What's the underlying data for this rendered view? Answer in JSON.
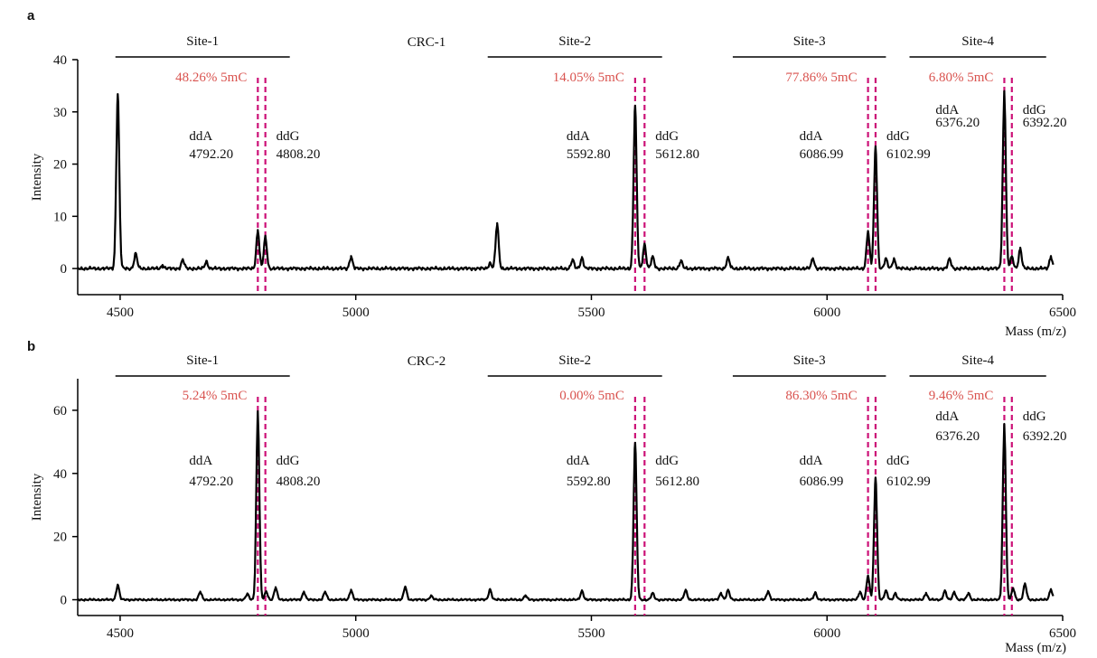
{
  "chart_data": [
    {
      "type": "line",
      "panel_label": "a",
      "sample": "CRC-1",
      "xlabel": "Mass (m/z)",
      "ylabel": "Intensity",
      "xlim": [
        4410,
        6500
      ],
      "ylim": [
        -5,
        40
      ],
      "xticks": [
        "4500",
        "5000",
        "5500",
        "6000",
        "6500"
      ],
      "yticks": [
        "0",
        "10",
        "20",
        "30",
        "40"
      ],
      "line_color": "#000000",
      "marker_color": "#cc1177",
      "sites": [
        {
          "name": "Site-1",
          "x_start": 4490,
          "x_end": 4860,
          "methylation": "48.26% 5mC",
          "ddA_label": "ddA",
          "ddA_mass": "4792.20",
          "ddG_label": "ddG",
          "ddG_mass": "4808.20",
          "marker_x": [
            4792.2,
            4808.2
          ]
        },
        {
          "name": "Site-2",
          "x_start": 5280,
          "x_end": 5650,
          "methylation": "14.05% 5mC",
          "ddA_label": "ddA",
          "ddA_mass": "5592.80",
          "ddG_label": "ddG",
          "ddG_mass": "5612.80",
          "marker_x": [
            5592.8,
            5612.8
          ]
        },
        {
          "name": "Site-3",
          "x_start": 5800,
          "x_end": 6125,
          "methylation": "77.86% 5mC",
          "ddA_label": "ddA",
          "ddA_mass": "6086.99",
          "ddG_label": "ddG",
          "ddG_mass": "6102.99",
          "marker_x": [
            6086.99,
            6102.99
          ]
        },
        {
          "name": "Site-4",
          "x_start": 6175,
          "x_end": 6465,
          "methylation": "6.80% 5mC",
          "ddA_label": "ddA",
          "ddA_mass": "6376.20",
          "ddG_label": "ddG",
          "ddG_mass": "6392.20",
          "marker_x": [
            6376.2,
            6392.2
          ]
        }
      ],
      "peaks": [
        {
          "x": 4495,
          "y": 33.2
        },
        {
          "x": 4533,
          "y": 2.8
        },
        {
          "x": 4590,
          "y": 0.5
        },
        {
          "x": 4633,
          "y": 1.6
        },
        {
          "x": 4683,
          "y": 1.3
        },
        {
          "x": 4792.2,
          "y": 7.2
        },
        {
          "x": 4808.2,
          "y": 6.0
        },
        {
          "x": 4990,
          "y": 2.2
        },
        {
          "x": 5285,
          "y": 1.0
        },
        {
          "x": 5300,
          "y": 8.5
        },
        {
          "x": 5460,
          "y": 1.6
        },
        {
          "x": 5480,
          "y": 2.0
        },
        {
          "x": 5592.8,
          "y": 31.0
        },
        {
          "x": 5612.8,
          "y": 4.6
        },
        {
          "x": 5630,
          "y": 2.2
        },
        {
          "x": 5690,
          "y": 1.4
        },
        {
          "x": 5790,
          "y": 2.0
        },
        {
          "x": 5970,
          "y": 1.8
        },
        {
          "x": 6086.99,
          "y": 7.0
        },
        {
          "x": 6102.99,
          "y": 23.2
        },
        {
          "x": 6125,
          "y": 1.8
        },
        {
          "x": 6142,
          "y": 1.8
        },
        {
          "x": 6260,
          "y": 1.8
        },
        {
          "x": 6376.2,
          "y": 33.8
        },
        {
          "x": 6392.2,
          "y": 2.2
        },
        {
          "x": 6410,
          "y": 3.8
        },
        {
          "x": 6475,
          "y": 2.2
        }
      ]
    },
    {
      "type": "line",
      "panel_label": "b",
      "sample": "CRC-2",
      "xlabel": "Mass (m/z)",
      "ylabel": "Intensity",
      "xlim": [
        4410,
        6500
      ],
      "ylim": [
        -5,
        70
      ],
      "xticks": [
        "4500",
        "5000",
        "5500",
        "6000",
        "6500"
      ],
      "yticks": [
        "0",
        "20",
        "40",
        "60"
      ],
      "line_color": "#000000",
      "marker_color": "#cc1177",
      "sites": [
        {
          "name": "Site-1",
          "x_start": 4490,
          "x_end": 4860,
          "methylation": "5.24% 5mC",
          "ddA_label": "ddA",
          "ddA_mass": "4792.20",
          "ddG_label": "ddG",
          "ddG_mass": "4808.20",
          "marker_x": [
            4792.2,
            4808.2
          ]
        },
        {
          "name": "Site-2",
          "x_start": 5280,
          "x_end": 5650,
          "methylation": "0.00% 5mC",
          "ddA_label": "ddA",
          "ddA_mass": "5592.80",
          "ddG_label": "ddG",
          "ddG_mass": "5612.80",
          "marker_x": [
            5592.8,
            5612.8
          ]
        },
        {
          "name": "Site-3",
          "x_start": 5800,
          "x_end": 6125,
          "methylation": "86.30% 5mC",
          "ddA_label": "ddA",
          "ddA_mass": "6086.99",
          "ddG_label": "ddG",
          "ddG_mass": "6102.99",
          "marker_x": [
            6086.99,
            6102.99
          ]
        },
        {
          "name": "Site-4",
          "x_start": 6175,
          "x_end": 6465,
          "methylation": "9.46% 5mC",
          "ddA_label": "ddA",
          "ddA_mass": "6376.20",
          "ddG_label": "ddG",
          "ddG_mass": "6392.20",
          "marker_x": [
            6376.2,
            6392.2
          ]
        }
      ],
      "peaks": [
        {
          "x": 4495,
          "y": 4.6
        },
        {
          "x": 4670,
          "y": 2.4
        },
        {
          "x": 4770,
          "y": 1.8
        },
        {
          "x": 4792.2,
          "y": 59.5
        },
        {
          "x": 4810,
          "y": 2.5
        },
        {
          "x": 4830,
          "y": 3.8
        },
        {
          "x": 4890,
          "y": 2.4
        },
        {
          "x": 4935,
          "y": 2.4
        },
        {
          "x": 4990,
          "y": 3.0
        },
        {
          "x": 5105,
          "y": 4.0
        },
        {
          "x": 5160,
          "y": 1.2
        },
        {
          "x": 5285,
          "y": 3.2
        },
        {
          "x": 5360,
          "y": 1.2
        },
        {
          "x": 5480,
          "y": 2.8
        },
        {
          "x": 5592.8,
          "y": 49.5
        },
        {
          "x": 5630,
          "y": 2.0
        },
        {
          "x": 5700,
          "y": 3.0
        },
        {
          "x": 5775,
          "y": 2.0
        },
        {
          "x": 5790,
          "y": 3.0
        },
        {
          "x": 5875,
          "y": 2.6
        },
        {
          "x": 5975,
          "y": 2.2
        },
        {
          "x": 6070,
          "y": 2.4
        },
        {
          "x": 6086.99,
          "y": 7.5
        },
        {
          "x": 6102.99,
          "y": 38.5
        },
        {
          "x": 6125,
          "y": 2.8
        },
        {
          "x": 6145,
          "y": 2.0
        },
        {
          "x": 6210,
          "y": 2.0
        },
        {
          "x": 6250,
          "y": 2.8
        },
        {
          "x": 6270,
          "y": 2.4
        },
        {
          "x": 6300,
          "y": 2.0
        },
        {
          "x": 6376.2,
          "y": 55.5
        },
        {
          "x": 6395,
          "y": 3.5
        },
        {
          "x": 6420,
          "y": 5.0
        },
        {
          "x": 6475,
          "y": 3.2
        }
      ]
    }
  ]
}
